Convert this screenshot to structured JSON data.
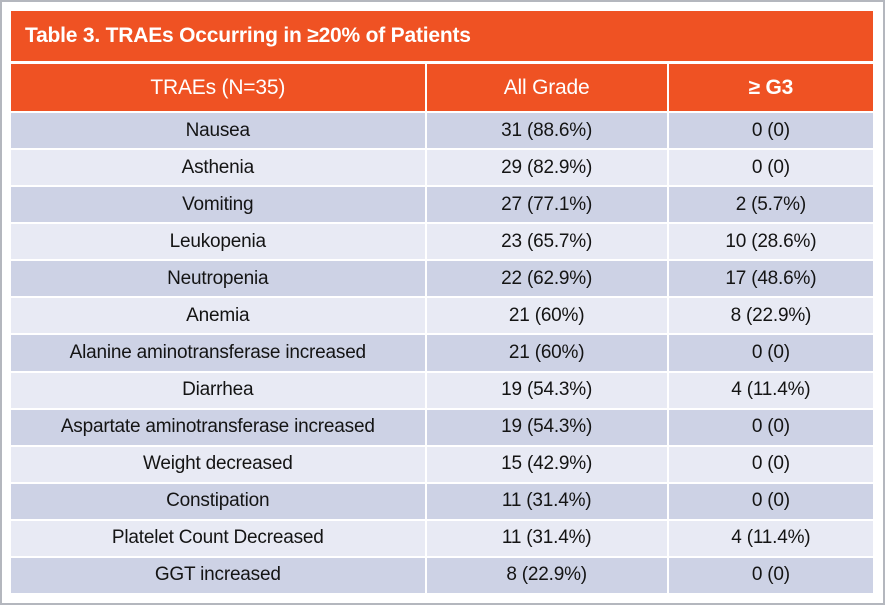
{
  "table": {
    "title": "Table 3. TRAEs Occurring in ≥20% of Patients",
    "columns": [
      "TRAEs (N=35)",
      "All Grade",
      "≥ G3"
    ],
    "rows": [
      [
        "Nausea",
        "31 (88.6%)",
        "0 (0)"
      ],
      [
        "Asthenia",
        "29 (82.9%)",
        "0 (0)"
      ],
      [
        "Vomiting",
        "27 (77.1%)",
        "2 (5.7%)"
      ],
      [
        "Leukopenia",
        "23 (65.7%)",
        "10 (28.6%)"
      ],
      [
        "Neutropenia",
        "22 (62.9%)",
        "17 (48.6%)"
      ],
      [
        "Anemia",
        "21 (60%)",
        "8 (22.9%)"
      ],
      [
        "Alanine aminotransferase increased",
        "21 (60%)",
        "0 (0)"
      ],
      [
        "Diarrhea",
        "19 (54.3%)",
        "4 (11.4%)"
      ],
      [
        "Aspartate aminotransferase increased",
        "19 (54.3%)",
        "0 (0)"
      ],
      [
        "Weight decreased",
        "15 (42.9%)",
        "0 (0)"
      ],
      [
        "Constipation",
        "11 (31.4%)",
        "0 (0)"
      ],
      [
        "Platelet Count Decreased",
        "11 (31.4%)",
        "4 (11.4%)"
      ],
      [
        "GGT increased",
        "8 (22.9%)",
        "0 (0)"
      ]
    ],
    "colors": {
      "accent_orange": "#ef5223",
      "row_dark": "#cdd2e5",
      "row_light": "#e8eaf4",
      "header_text": "#ffffff",
      "body_text": "#141414",
      "frame_border": "#b4b7be"
    }
  }
}
